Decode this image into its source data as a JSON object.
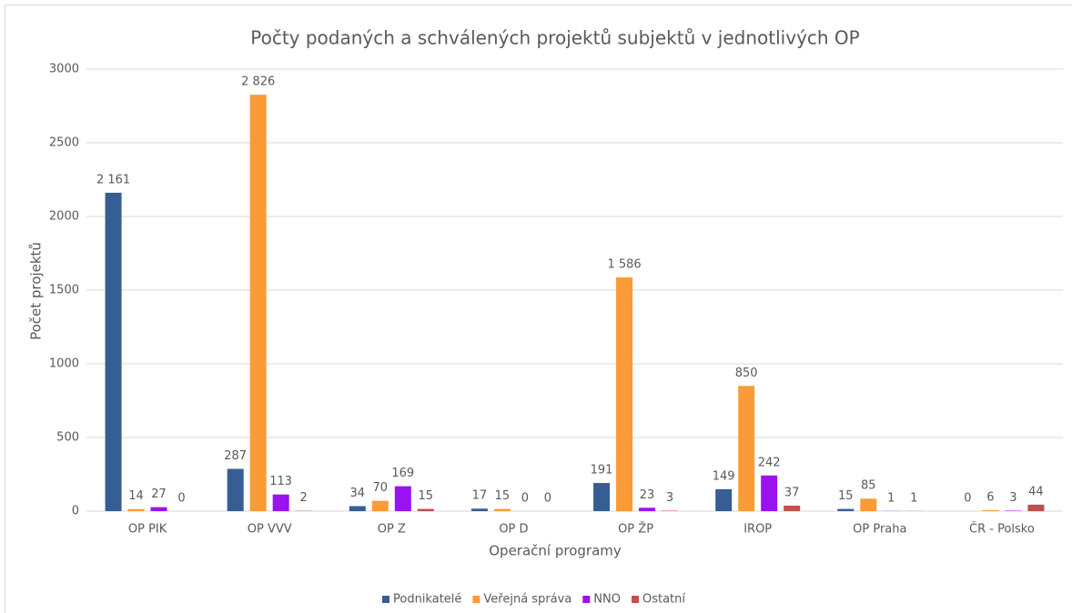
{
  "chart_data": {
    "type": "bar",
    "title": "Počty podaných a schválených projektů subjektů v jednotlivých OP",
    "x_label": "Operační programy",
    "y_label": "Počet projektů",
    "categories": [
      "OP PIK",
      "OP VVV",
      "OP Z",
      "OP D",
      "OP ŽP",
      "IROP",
      "OP Praha",
      "ČR - Polsko"
    ],
    "series": [
      {
        "name": "Podnikatelé",
        "color": "#365e93",
        "values": [
          2161,
          287,
          34,
          17,
          191,
          149,
          15,
          0
        ],
        "value_labels": [
          "2 161",
          "287",
          "34",
          "17",
          "191",
          "149",
          "15",
          "0"
        ]
      },
      {
        "name": "Veřejná správa",
        "color": "#f99b37",
        "values": [
          14,
          2826,
          70,
          15,
          1586,
          850,
          85,
          6
        ],
        "value_labels": [
          "14",
          "2 826",
          "70",
          "15",
          "1 586",
          "850",
          "85",
          "6"
        ]
      },
      {
        "name": "NNO",
        "color": "#9a12ee",
        "values": [
          27,
          113,
          169,
          0,
          23,
          242,
          1,
          3
        ],
        "value_labels": [
          "27",
          "113",
          "169",
          "0",
          "23",
          "242",
          "1",
          "3"
        ]
      },
      {
        "name": "Ostatní",
        "color": "#c0504d",
        "values": [
          0,
          2,
          15,
          0,
          3,
          37,
          1,
          44
        ],
        "value_labels": [
          "0",
          "2",
          "15",
          "0",
          "3",
          "37",
          "1",
          "44"
        ]
      }
    ],
    "ylim": [
      0,
      3000
    ],
    "yticks": [
      0,
      500,
      1000,
      1500,
      2000,
      2500,
      3000
    ],
    "grid": true,
    "legend": "bottom"
  }
}
